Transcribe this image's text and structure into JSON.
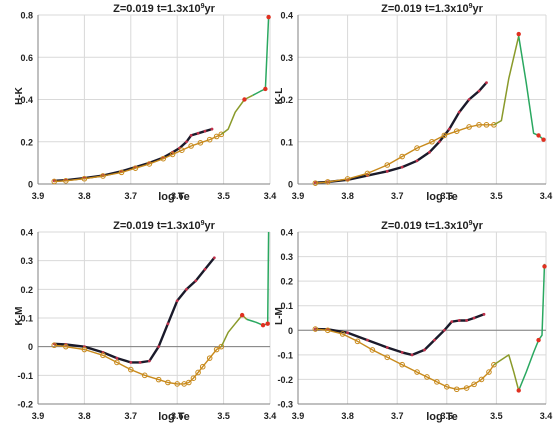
{
  "colors": {
    "background": "#ffffff",
    "grid": "#d9d9d9",
    "axis": "#808080",
    "text": "#222222",
    "black_track": "#1a1a2a",
    "dark_marker": "#c0304a",
    "orange_track": "#c88a1c",
    "orange_marker": "#f2c400",
    "olive_track": "#8a9a2a",
    "green_track": "#2aa860",
    "tip_marker": "#e03020"
  },
  "chart_data": [
    {
      "type": "line",
      "title": "Z=0.019  t=1.3x10",
      "title_exponent": "9",
      "title_suffix": "yr",
      "xlabel": "log Te",
      "ylabel": "H-K",
      "xlim": [
        3.9,
        3.4
      ],
      "ylim": [
        0,
        0.8
      ],
      "yticks": [
        0,
        0.2,
        0.4,
        0.6,
        0.8
      ],
      "ytick_labels": [
        "0",
        "0.2",
        "0.4",
        "0.6",
        "0.8"
      ],
      "xticks": [
        3.9,
        3.8,
        3.7,
        3.6,
        3.5,
        3.4
      ],
      "xtick_labels": [
        "3.9",
        "3.8",
        "3.7",
        "3.6",
        "3.5",
        "3.4"
      ],
      "grid": true,
      "series": [
        {
          "style": "dark",
          "x": [
            3.865,
            3.84,
            3.8,
            3.76,
            3.72,
            3.69,
            3.66,
            3.63,
            3.61,
            3.595,
            3.58,
            3.57,
            3.555,
            3.54,
            3.525
          ],
          "y": [
            0.015,
            0.018,
            0.028,
            0.04,
            0.06,
            0.08,
            0.1,
            0.125,
            0.15,
            0.17,
            0.2,
            0.23,
            0.24,
            0.25,
            0.26
          ]
        },
        {
          "style": "orange",
          "x": [
            3.865,
            3.84,
            3.8,
            3.76,
            3.72,
            3.69,
            3.66,
            3.63,
            3.61,
            3.59,
            3.57,
            3.55,
            3.53,
            3.515,
            3.505
          ],
          "y": [
            0.012,
            0.015,
            0.025,
            0.038,
            0.055,
            0.075,
            0.095,
            0.12,
            0.14,
            0.16,
            0.18,
            0.195,
            0.21,
            0.225,
            0.235
          ]
        },
        {
          "style": "olive",
          "x": [
            3.505,
            3.49,
            3.475,
            3.455,
            3.437
          ],
          "y": [
            0.235,
            0.26,
            0.34,
            0.4,
            0.42
          ]
        },
        {
          "style": "green",
          "x": [
            3.437,
            3.42,
            3.41,
            3.403
          ],
          "y": [
            0.42,
            0.44,
            0.45,
            0.79
          ]
        },
        {
          "style": "tip",
          "x": [
            3.455,
            3.41,
            3.403
          ],
          "y": [
            0.4,
            0.45,
            0.79
          ]
        }
      ]
    },
    {
      "type": "line",
      "title": "Z=0.019  t=1.3x10",
      "title_exponent": "9",
      "title_suffix": "yr",
      "xlabel": "log Te",
      "ylabel": "K-L",
      "xlim": [
        3.9,
        3.4
      ],
      "ylim": [
        0,
        0.4
      ],
      "yticks": [
        0,
        0.1,
        0.2,
        0.3,
        0.4
      ],
      "ytick_labels": [
        "0",
        "0.1",
        "0.2",
        "0.3",
        "0.4"
      ],
      "xticks": [
        3.9,
        3.8,
        3.7,
        3.6,
        3.5,
        3.4
      ],
      "xtick_labels": [
        "3.9",
        "3.8",
        "3.7",
        "3.6",
        "3.5",
        "3.4"
      ],
      "grid": true,
      "series": [
        {
          "style": "dark",
          "x": [
            3.865,
            3.84,
            3.8,
            3.76,
            3.72,
            3.69,
            3.66,
            3.635,
            3.615,
            3.595,
            3.575,
            3.555,
            3.535,
            3.52
          ],
          "y": [
            0.003,
            0.005,
            0.01,
            0.02,
            0.03,
            0.04,
            0.055,
            0.075,
            0.1,
            0.13,
            0.17,
            0.2,
            0.22,
            0.24
          ]
        },
        {
          "style": "orange",
          "x": [
            3.865,
            3.84,
            3.8,
            3.76,
            3.72,
            3.69,
            3.66,
            3.63,
            3.605,
            3.58,
            3.555,
            3.535,
            3.52,
            3.505
          ],
          "y": [
            0.002,
            0.005,
            0.012,
            0.025,
            0.045,
            0.065,
            0.085,
            0.1,
            0.115,
            0.125,
            0.135,
            0.14,
            0.14,
            0.14
          ]
        },
        {
          "style": "olive",
          "x": [
            3.505,
            3.49,
            3.475,
            3.455
          ],
          "y": [
            0.14,
            0.15,
            0.25,
            0.35
          ]
        },
        {
          "style": "green",
          "x": [
            3.455,
            3.44,
            3.425,
            3.415,
            3.405
          ],
          "y": [
            0.35,
            0.24,
            0.12,
            0.115,
            0.105
          ]
        },
        {
          "style": "tip",
          "x": [
            3.455,
            3.415,
            3.405
          ],
          "y": [
            0.355,
            0.115,
            0.105
          ]
        }
      ]
    },
    {
      "type": "line",
      "title": "Z=0.019  t=1.3x10",
      "title_exponent": "9",
      "title_suffix": "yr",
      "xlabel": "log Te",
      "ylabel": "K-M",
      "xlim": [
        3.9,
        3.4
      ],
      "ylim": [
        -0.2,
        0.4
      ],
      "yticks": [
        -0.2,
        -0.1,
        0,
        0.1,
        0.2,
        0.3,
        0.4
      ],
      "ytick_labels": [
        "-0.2",
        "-0.1",
        "0",
        "0.1",
        "0.2",
        "0.3",
        "0.4"
      ],
      "xticks": [
        3.9,
        3.8,
        3.7,
        3.6,
        3.5,
        3.4
      ],
      "xtick_labels": [
        "3.9",
        "3.8",
        "3.7",
        "3.6",
        "3.5",
        "3.4"
      ],
      "grid": true,
      "series": [
        {
          "style": "dark",
          "x": [
            3.865,
            3.84,
            3.8,
            3.76,
            3.73,
            3.7,
            3.68,
            3.66,
            3.64,
            3.62,
            3.6,
            3.58,
            3.56,
            3.54,
            3.52
          ],
          "y": [
            0.01,
            0.008,
            0.0,
            -0.02,
            -0.04,
            -0.055,
            -0.055,
            -0.05,
            0.0,
            0.08,
            0.16,
            0.2,
            0.23,
            0.27,
            0.31
          ]
        },
        {
          "style": "orange",
          "x": [
            3.865,
            3.84,
            3.8,
            3.76,
            3.73,
            3.7,
            3.67,
            3.64,
            3.62,
            3.6,
            3.585,
            3.575,
            3.565,
            3.555,
            3.545,
            3.53,
            3.515,
            3.505
          ],
          "y": [
            0.005,
            0.0,
            -0.01,
            -0.03,
            -0.055,
            -0.08,
            -0.1,
            -0.115,
            -0.125,
            -0.13,
            -0.13,
            -0.125,
            -0.11,
            -0.09,
            -0.07,
            -0.04,
            -0.01,
            0.0
          ]
        },
        {
          "style": "olive",
          "x": [
            3.505,
            3.49,
            3.475,
            3.46,
            3.45
          ],
          "y": [
            0.0,
            0.05,
            0.08,
            0.11,
            0.095
          ]
        },
        {
          "style": "green",
          "x": [
            3.45,
            3.43,
            3.415,
            3.405,
            3.403
          ],
          "y": [
            0.095,
            0.085,
            0.075,
            0.08,
            0.4
          ]
        },
        {
          "style": "tip",
          "x": [
            3.46,
            3.415,
            3.405
          ],
          "y": [
            0.11,
            0.075,
            0.08
          ]
        }
      ]
    },
    {
      "type": "line",
      "title": "Z=0.019  t=1.3x10",
      "title_exponent": "9",
      "title_suffix": "yr",
      "xlabel": "log Te",
      "ylabel": "L-M",
      "xlim": [
        3.9,
        3.4
      ],
      "ylim": [
        -0.3,
        0.4
      ],
      "yticks": [
        -0.3,
        -0.2,
        -0.1,
        0,
        0.1,
        0.2,
        0.3,
        0.4
      ],
      "ytick_labels": [
        "-0.3",
        "-0.2",
        "-0.1",
        "0",
        "0.1",
        "0.2",
        "0.3",
        "0.4"
      ],
      "xticks": [
        3.9,
        3.8,
        3.7,
        3.6,
        3.5,
        3.4
      ],
      "xtick_labels": [
        "3.9",
        "3.8",
        "3.7",
        "3.6",
        "3.5",
        "3.4"
      ],
      "grid": true,
      "series": [
        {
          "style": "dark",
          "x": [
            3.865,
            3.84,
            3.8,
            3.76,
            3.72,
            3.69,
            3.67,
            3.645,
            3.625,
            3.605,
            3.59,
            3.575,
            3.56,
            3.545,
            3.525
          ],
          "y": [
            0.005,
            0.004,
            -0.01,
            -0.04,
            -0.07,
            -0.09,
            -0.1,
            -0.08,
            -0.04,
            0.0,
            0.035,
            0.04,
            0.04,
            0.05,
            0.065
          ]
        },
        {
          "style": "orange",
          "x": [
            3.865,
            3.84,
            3.81,
            3.78,
            3.75,
            3.72,
            3.69,
            3.66,
            3.64,
            3.62,
            3.6,
            3.58,
            3.56,
            3.545,
            3.53,
            3.515,
            3.505
          ],
          "y": [
            0.005,
            0.0,
            -0.015,
            -0.045,
            -0.08,
            -0.11,
            -0.14,
            -0.17,
            -0.19,
            -0.21,
            -0.23,
            -0.24,
            -0.235,
            -0.22,
            -0.2,
            -0.17,
            -0.14
          ]
        },
        {
          "style": "olive",
          "x": [
            3.505,
            3.49,
            3.475,
            3.465,
            3.455
          ],
          "y": [
            -0.14,
            -0.12,
            -0.1,
            -0.17,
            -0.245
          ]
        },
        {
          "style": "green",
          "x": [
            3.455,
            3.44,
            3.425,
            3.415,
            3.408,
            3.403
          ],
          "y": [
            -0.245,
            -0.17,
            -0.09,
            -0.04,
            -0.02,
            0.27
          ]
        },
        {
          "style": "tip",
          "x": [
            3.455,
            3.415,
            3.403
          ],
          "y": [
            -0.245,
            -0.04,
            0.26
          ]
        }
      ]
    }
  ]
}
